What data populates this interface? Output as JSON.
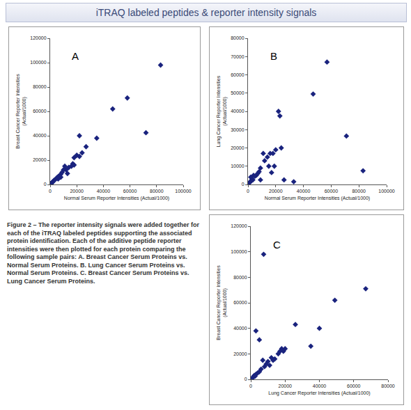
{
  "title": "iTRAQ labeled peptides & reporter intensity signals",
  "caption": "Figure 2 – The reporter intensity signals were added together for each of the iTRAQ labeled peptides supporting the associated protein identification. Each of the additive peptide reporter intensities were then plotted for each protein comparing the following sample pairs: A. Breast Cancer Serum Proteins vs. Normal Serum Proteins. B. Lung Cancer Serum Proteins vs. Normal Serum Proteins. C. Breast Cancer Serum Proteins vs. Lung Cancer Serum Proteins.",
  "chart_data": [
    {
      "type": "scatter",
      "annotations": [
        "A"
      ],
      "x_label": "Normal Serum Reporter Intensities (Actual/1000)",
      "y_label": "Breast Cancer Reporter Intensities\n(Actual/1000)",
      "xlim": [
        0,
        100000
      ],
      "xticks": [
        0,
        20000,
        40000,
        60000,
        80000,
        100000
      ],
      "ylim": [
        0,
        120000
      ],
      "yticks": [
        0,
        20000,
        40000,
        60000,
        80000,
        100000,
        120000
      ],
      "grid": false,
      "color": "#1a237e",
      "marker": "diamond",
      "x": [
        83000,
        58000,
        72000,
        47000,
        35000,
        22000,
        27000,
        24000,
        20000,
        18000,
        22000,
        17000,
        16000,
        18000,
        14000,
        12000,
        11000,
        10000,
        9000,
        8000,
        7000,
        6000,
        5000,
        4000,
        3000,
        2500,
        2000,
        1500,
        1000,
        500,
        300,
        13000,
        8000,
        6000
      ],
      "values": [
        98000,
        71000,
        42500,
        62000,
        38000,
        40000,
        31000,
        26000,
        24000,
        22000,
        23000,
        17000,
        15000,
        16000,
        14000,
        12000,
        15000,
        12000,
        10000,
        8500,
        7000,
        6500,
        5500,
        4200,
        3500,
        2800,
        2200,
        1500,
        1000,
        600,
        300,
        9000,
        6000,
        4500
      ]
    },
    {
      "type": "scatter",
      "annotations": [
        "B"
      ],
      "x_label": "Normal Serum Reporter Intensities (Actual/1000)",
      "y_label": "Lung Cancer Reporter Intensities\n(Actual/1000)",
      "xlim": [
        0,
        100000
      ],
      "xticks": [
        0,
        20000,
        40000,
        60000,
        80000,
        100000
      ],
      "ylim": [
        0,
        80000
      ],
      "yticks": [
        0,
        10000,
        20000,
        30000,
        40000,
        50000,
        60000,
        70000,
        80000
      ],
      "grid": false,
      "color": "#1a237e",
      "marker": "diamond",
      "x": [
        57000,
        47000,
        71000,
        83000,
        22000,
        23000,
        24000,
        20000,
        18000,
        16000,
        11000,
        14000,
        19000,
        15000,
        17000,
        26000,
        33000,
        9000,
        8000,
        7000,
        6000,
        5000,
        4000,
        3000,
        2500,
        2000,
        1500,
        1000,
        500,
        9000,
        12000,
        3500
      ],
      "values": [
        67000,
        49500,
        26500,
        7500,
        40000,
        37500,
        20000,
        19000,
        17000,
        17000,
        17000,
        15000,
        10000,
        10000,
        6500,
        2500,
        1500,
        9000,
        7000,
        6000,
        5000,
        4500,
        5000,
        3000,
        2000,
        4000,
        1500,
        1000,
        500,
        2500,
        13000,
        2500
      ]
    },
    {
      "type": "scatter",
      "annotations": [
        "C"
      ],
      "x_label": "Lung Cancer Reporter Intensities (Actual/1000)",
      "y_label": "Breast Cancer Reporter Intensities\n(Actual/1000)",
      "xlim": [
        0,
        80000
      ],
      "xticks": [
        0,
        20000,
        40000,
        60000,
        80000
      ],
      "ylim": [
        0,
        120000
      ],
      "yticks": [
        0,
        20000,
        40000,
        60000,
        80000,
        100000,
        120000
      ],
      "grid": false,
      "color": "#1a237e",
      "marker": "diamond",
      "x": [
        7500,
        67000,
        49000,
        40000,
        26000,
        35000,
        3000,
        5000,
        18000,
        17000,
        16000,
        14000,
        13000,
        12000,
        10000,
        19000,
        9000,
        8000,
        7000,
        6000,
        5000,
        4000,
        3000,
        2000,
        1500,
        1000,
        500,
        2500,
        20000,
        11000
      ],
      "values": [
        98000,
        71000,
        62000,
        40000,
        43000,
        26000,
        38000,
        31000,
        24000,
        22000,
        20000,
        16000,
        15000,
        17000,
        14000,
        22000,
        12000,
        10000,
        15000,
        8000,
        6000,
        5000,
        4000,
        3000,
        2000,
        1000,
        500,
        2500,
        24000,
        11000
      ]
    }
  ]
}
